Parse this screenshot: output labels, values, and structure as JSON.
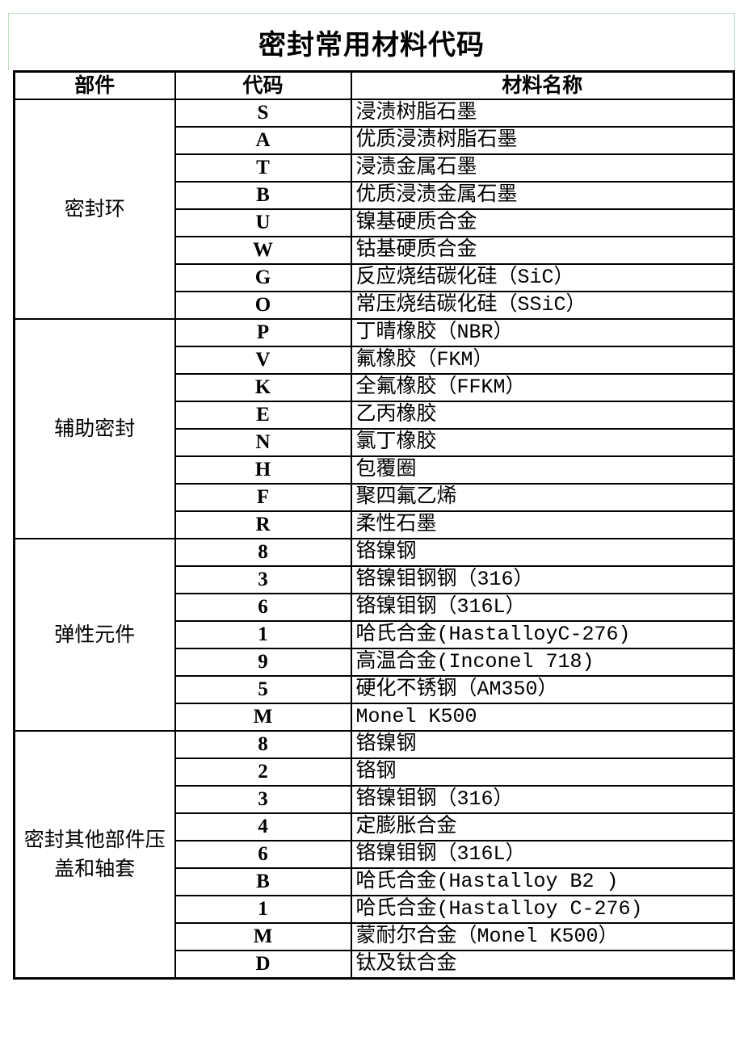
{
  "title": "密封常用材料代码",
  "headers": {
    "part": "部件",
    "code": "代码",
    "name": "材料名称"
  },
  "groups": [
    {
      "part": "密封环",
      "rows": [
        {
          "code": "S",
          "name": "浸渍树脂石墨"
        },
        {
          "code": "A",
          "name": "优质浸渍树脂石墨"
        },
        {
          "code": "T",
          "name": "浸渍金属石墨"
        },
        {
          "code": "B",
          "name": "优质浸渍金属石墨"
        },
        {
          "code": "U",
          "name": "镍基硬质合金"
        },
        {
          "code": "W",
          "name": "钴基硬质合金"
        },
        {
          "code": "G",
          "name": "反应烧结碳化硅（SiC）"
        },
        {
          "code": "O",
          "name": "常压烧结碳化硅（SSiC）"
        }
      ]
    },
    {
      "part": "辅助密封",
      "rows": [
        {
          "code": "P",
          "name": "丁晴橡胶（NBR）"
        },
        {
          "code": "V",
          "name": "氟橡胶（FKM）"
        },
        {
          "code": "K",
          "name": "全氟橡胶（FFKM）"
        },
        {
          "code": "E",
          "name": "乙丙橡胶"
        },
        {
          "code": "N",
          "name": "氯丁橡胶"
        },
        {
          "code": "H",
          "name": "包覆圈"
        },
        {
          "code": "F",
          "name": "聚四氟乙烯"
        },
        {
          "code": "R",
          "name": "柔性石墨"
        }
      ]
    },
    {
      "part": "弹性元件",
      "rows": [
        {
          "code": "8",
          "name": "铬镍钢"
        },
        {
          "code": "3",
          "name": "铬镍钼钢钢（316）"
        },
        {
          "code": "6",
          "name": "铬镍钼钢（316L）"
        },
        {
          "code": "1",
          "name": "哈氏合金(HastalloyC-276)"
        },
        {
          "code": "9",
          "name": "高温合金(Inconel 718)"
        },
        {
          "code": "5",
          "name": "硬化不锈钢（AM350）"
        },
        {
          "code": "M",
          "name": "Monel K500"
        }
      ]
    },
    {
      "part": "密封其他部件压盖和轴套",
      "rows": [
        {
          "code": "8",
          "name": "铬镍钢"
        },
        {
          "code": "2",
          "name": "铬钢"
        },
        {
          "code": "3",
          "name": "铬镍钼钢（316）"
        },
        {
          "code": "4",
          "name": "定膨胀合金"
        },
        {
          "code": "6",
          "name": "铬镍钼钢（316L）"
        },
        {
          "code": "B",
          "name": "哈氏合金(Hastalloy B2 )"
        },
        {
          "code": "1",
          "name": "哈氏合金(Hastalloy C-276)"
        },
        {
          "code": "M",
          "name": "蒙耐尔合金（Monel K500）"
        },
        {
          "code": "D",
          "name": "钛及钛合金"
        }
      ]
    }
  ]
}
